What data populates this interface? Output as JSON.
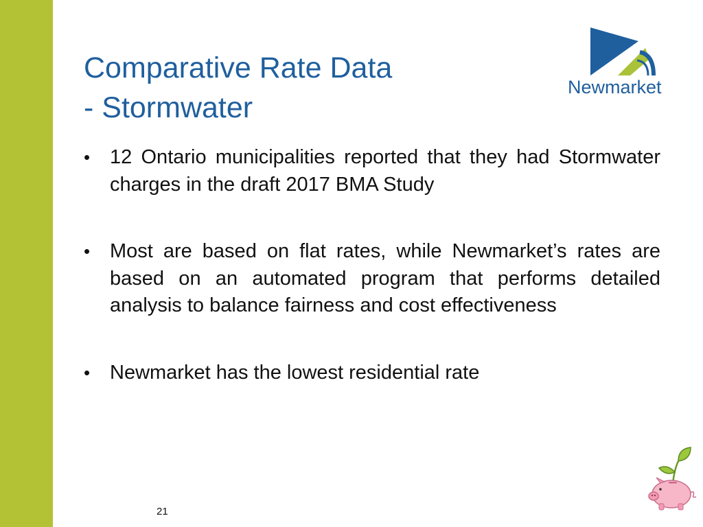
{
  "slide": {
    "title_line1": "Comparative Rate Data",
    "title_line2": "- Stormwater",
    "logo_text": "Newmarket",
    "bullets": [
      "12 Ontario municipalities reported that they had Stormwater charges in the draft 2017 BMA Study",
      "Most are based on flat rates, while Newmarket’s rates are based on an automated program that performs detailed analysis to balance fairness and cost effectiveness",
      "Newmarket has the lowest residential rate"
    ],
    "bullet_glyph": "•",
    "page_number": "21"
  },
  "colors": {
    "side_bar": "#b3c234",
    "title": "#1f5f9e",
    "logo_blue": "#1f5f9e",
    "logo_green": "#a9c23a"
  },
  "icons": {
    "logo": "newmarket-logo-icon",
    "decoration": "piggy-bank-sprout-icon"
  }
}
